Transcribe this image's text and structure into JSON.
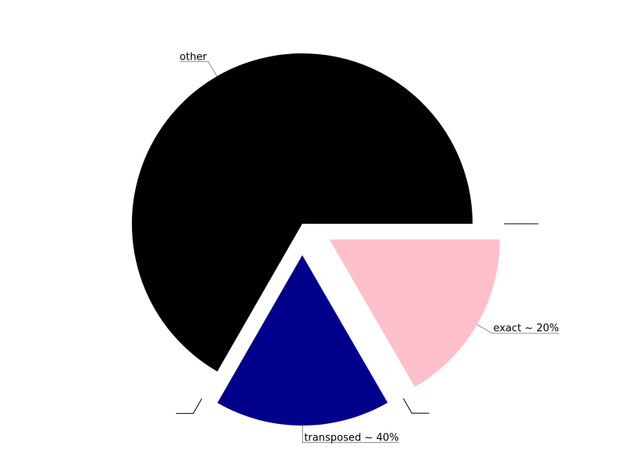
{
  "chart_data": {
    "type": "pie",
    "title": "",
    "slices": [
      {
        "label": "other",
        "value": 66.7,
        "color": "#000000",
        "exploded": false
      },
      {
        "label": "",
        "value": 0.0,
        "color": "#000000",
        "exploded": true
      },
      {
        "label": "transposed ~ 40%",
        "value": 16.65,
        "color": "#00008b",
        "exploded": true
      },
      {
        "label": "",
        "value": 0.0,
        "color": "#000000",
        "exploded": true
      },
      {
        "label": "exact ~ 20%",
        "value": 16.65,
        "color": "#ffc0cb",
        "exploded": true
      },
      {
        "label": "",
        "value": 0.0,
        "color": "#000000",
        "exploded": true
      }
    ],
    "start_angle_deg": 0,
    "direction": "counterclockwise",
    "legend": "none"
  }
}
